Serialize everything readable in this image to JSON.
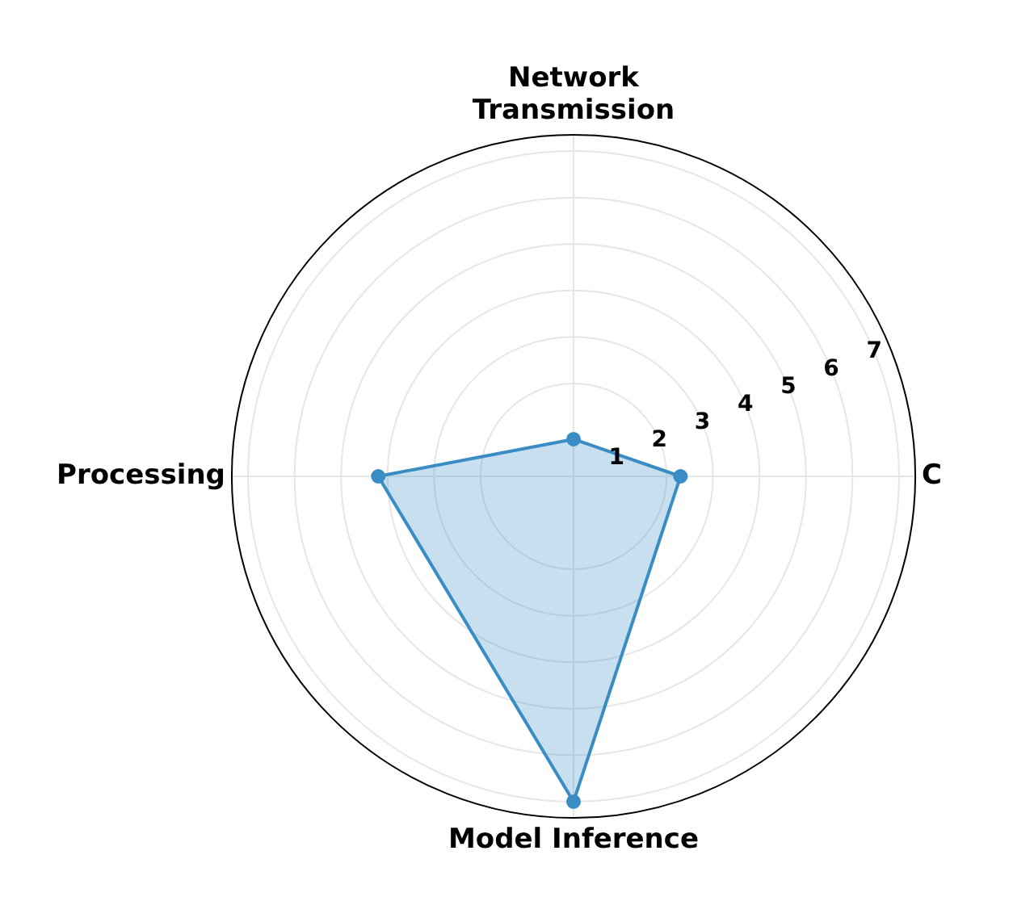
{
  "chart_data": {
    "type": "radar",
    "categories": [
      "Network\nTransmission",
      "C",
      "Model Inference",
      "Processing"
    ],
    "series": [
      {
        "color": "#3a8cc4",
        "values": [
          0.8,
          2.3,
          7.0,
          4.2
        ]
      }
    ],
    "ylim": [
      0,
      7.35
    ],
    "yticks": [
      1,
      2,
      3,
      4,
      5,
      6,
      7
    ],
    "grid": true,
    "marker": "circle",
    "legend": false
  }
}
